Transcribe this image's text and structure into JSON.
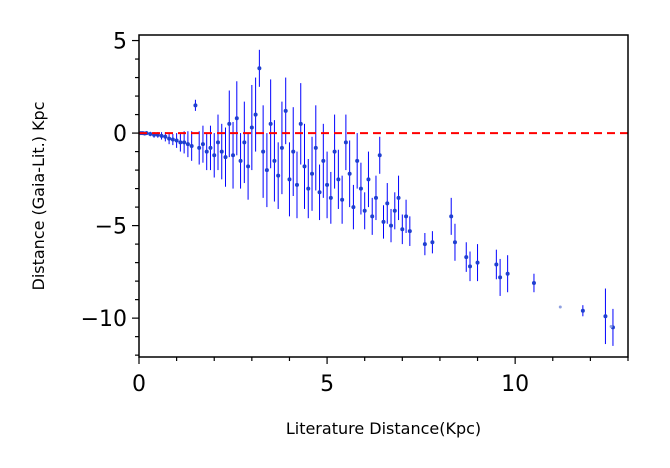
{
  "chart_data": {
    "type": "scatter",
    "title": "",
    "xlabel": "Literature Distance(Kpc)",
    "ylabel": "Distance (Gaia-Lit.) Kpc",
    "xlim": [
      0,
      13
    ],
    "ylim": [
      -12.1,
      5.3
    ],
    "xticks": [
      0,
      5,
      10
    ],
    "yticks": [
      5,
      0,
      -5,
      -10
    ],
    "tick_labels": {
      "x": [
        "0",
        "5",
        "10"
      ],
      "y": [
        "5",
        "0",
        "−5",
        "−10"
      ]
    },
    "grid": false,
    "legend": "none",
    "reference_line": {
      "y": 0,
      "style": "dashed",
      "color": "#ff0000"
    },
    "colors": {
      "points": "#1f3fd0",
      "error_bars": "#0000ff",
      "faint_points": "#8fa0e0",
      "frame": "#000000"
    },
    "series": [
      {
        "points": [
          [
            0.05,
            0.0,
            0.05
          ],
          [
            0.1,
            0.0,
            0.08
          ],
          [
            0.15,
            -0.02,
            0.1
          ],
          [
            0.2,
            0.0,
            0.1
          ],
          [
            0.3,
            -0.05,
            0.12
          ],
          [
            0.4,
            -0.1,
            0.15
          ],
          [
            0.5,
            -0.1,
            0.15
          ],
          [
            0.6,
            -0.15,
            0.2
          ],
          [
            0.7,
            -0.2,
            0.25
          ],
          [
            0.8,
            -0.3,
            0.3
          ],
          [
            0.9,
            -0.35,
            0.3
          ],
          [
            1.0,
            -0.4,
            0.4
          ],
          [
            1.1,
            -0.5,
            0.5
          ],
          [
            1.2,
            -0.5,
            0.6
          ],
          [
            1.3,
            -0.6,
            0.7
          ],
          [
            1.4,
            -0.7,
            0.8
          ],
          [
            1.5,
            1.5,
            0.3
          ],
          [
            1.6,
            -0.8,
            0.9
          ],
          [
            1.7,
            -0.6,
            1.0
          ],
          [
            1.8,
            -1.0,
            1.0
          ],
          [
            1.9,
            -0.8,
            1.2
          ],
          [
            2.0,
            -1.2,
            1.2
          ],
          [
            2.1,
            -0.5,
            1.5
          ],
          [
            2.2,
            -1.0,
            1.5
          ],
          [
            2.3,
            -1.3,
            1.6
          ],
          [
            2.4,
            0.5,
            1.8
          ],
          [
            2.5,
            -1.2,
            1.8
          ],
          [
            2.6,
            0.8,
            2.0
          ],
          [
            2.7,
            -1.5,
            1.5
          ],
          [
            2.8,
            -0.5,
            2.2
          ],
          [
            2.9,
            -1.8,
            1.8
          ],
          [
            3.0,
            0.3,
            2.3
          ],
          [
            3.1,
            1.0,
            2.0
          ],
          [
            3.2,
            3.5,
            1.0
          ],
          [
            3.3,
            -1.0,
            2.5
          ],
          [
            3.4,
            -2.0,
            2.0
          ],
          [
            3.5,
            0.5,
            2.4
          ],
          [
            3.6,
            -1.5,
            2.2
          ],
          [
            3.7,
            -2.3,
            1.8
          ],
          [
            3.8,
            -0.8,
            2.5
          ],
          [
            3.9,
            1.2,
            1.8
          ],
          [
            4.0,
            -2.5,
            2.0
          ],
          [
            4.1,
            -1.0,
            2.4
          ],
          [
            4.2,
            -2.8,
            1.8
          ],
          [
            4.3,
            0.5,
            2.2
          ],
          [
            4.4,
            -1.8,
            2.3
          ],
          [
            4.5,
            -3.0,
            1.6
          ],
          [
            4.6,
            -2.2,
            2.0
          ],
          [
            4.7,
            -0.8,
            2.3
          ],
          [
            4.8,
            -3.2,
            1.5
          ],
          [
            4.9,
            -1.5,
            2.0
          ],
          [
            5.0,
            -2.8,
            1.8
          ],
          [
            5.1,
            -3.5,
            1.4
          ],
          [
            5.2,
            -1.0,
            2.0
          ],
          [
            5.3,
            -2.5,
            1.6
          ],
          [
            5.4,
            -3.6,
            1.3
          ],
          [
            5.5,
            -0.5,
            1.5
          ],
          [
            5.6,
            -2.2,
            1.8
          ],
          [
            5.7,
            -4.0,
            1.2
          ],
          [
            5.8,
            -1.5,
            1.5
          ],
          [
            5.9,
            -3.0,
            1.4
          ],
          [
            6.0,
            -4.2,
            1.0
          ],
          [
            6.1,
            -2.5,
            1.5
          ],
          [
            6.2,
            -4.5,
            1.0
          ],
          [
            6.3,
            -3.5,
            1.2
          ],
          [
            6.4,
            -1.2,
            1.0
          ],
          [
            6.5,
            -4.8,
            0.9
          ],
          [
            6.6,
            -3.8,
            1.1
          ],
          [
            6.7,
            -5.0,
            0.9
          ],
          [
            6.8,
            -4.2,
            1.0
          ],
          [
            6.9,
            -3.5,
            1.2
          ],
          [
            7.0,
            -5.2,
            0.8
          ],
          [
            7.1,
            -4.5,
            0.9
          ],
          [
            7.2,
            -5.3,
            0.8
          ],
          [
            7.6,
            -6.0,
            0.6
          ],
          [
            7.8,
            -5.9,
            0.6
          ],
          [
            8.3,
            -4.5,
            1.0
          ],
          [
            8.4,
            -5.9,
            1.0
          ],
          [
            8.7,
            -6.7,
            0.8
          ],
          [
            8.8,
            -7.2,
            0.8
          ],
          [
            9.0,
            -7.0,
            1.0
          ],
          [
            9.5,
            -7.1,
            0.8
          ],
          [
            9.6,
            -7.8,
            1.0
          ],
          [
            9.8,
            -7.6,
            1.0
          ],
          [
            10.5,
            -8.1,
            0.5
          ],
          [
            11.8,
            -9.6,
            0.3
          ],
          [
            12.4,
            -9.9,
            1.5
          ],
          [
            12.6,
            -10.5,
            1.0
          ]
        ]
      }
    ],
    "faint_points": [
      [
        11.2,
        -9.4
      ],
      [
        12.55,
        -10.45
      ]
    ]
  }
}
